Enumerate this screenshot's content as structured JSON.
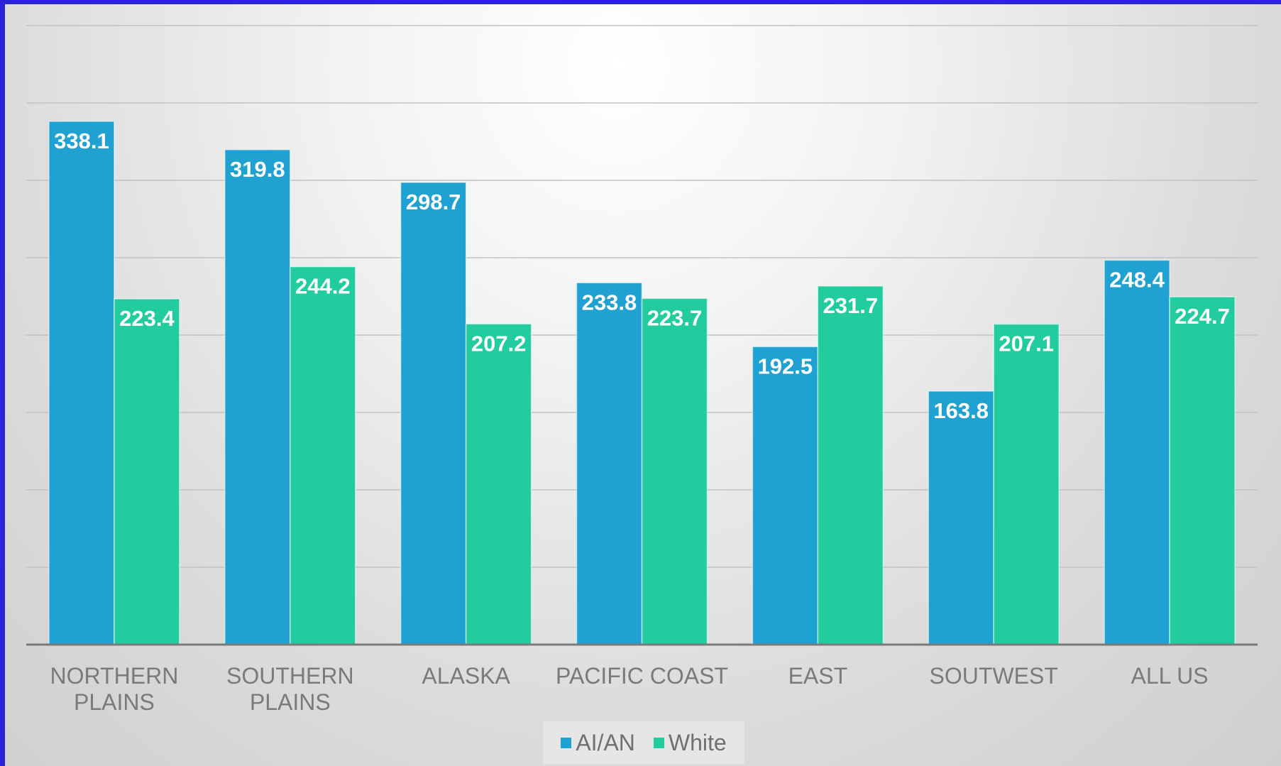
{
  "chart_data": {
    "type": "bar",
    "categories": [
      [
        "NORTHERN",
        "PLAINS"
      ],
      [
        "SOUTHERN",
        "PLAINS"
      ],
      [
        "ALASKA"
      ],
      [
        "PACIFIC COAST"
      ],
      [
        "EAST"
      ],
      [
        "SOUTWEST"
      ],
      [
        "ALL US"
      ]
    ],
    "series": [
      {
        "name": "AI/AN",
        "color": "#1fa2d2",
        "values": [
          338.1,
          319.8,
          298.7,
          233.8,
          192.5,
          163.8,
          248.4
        ]
      },
      {
        "name": "White",
        "color": "#22cc9f",
        "values": [
          223.4,
          244.2,
          207.2,
          223.7,
          231.7,
          207.1,
          224.7
        ]
      }
    ],
    "ylim": [
      0,
      400
    ],
    "grid": true,
    "legend_position": "bottom",
    "data_labels": true
  }
}
